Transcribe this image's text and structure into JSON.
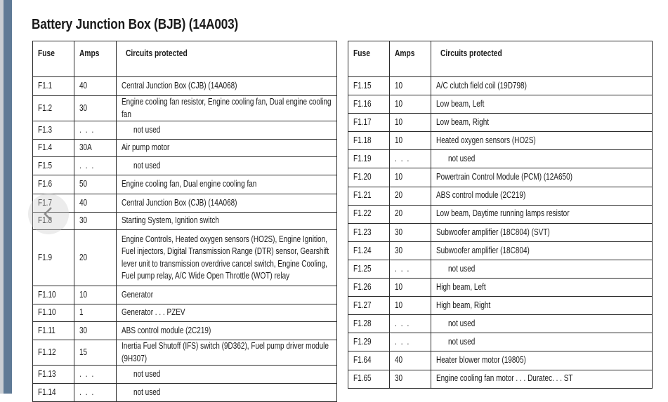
{
  "title": "Battery Junction Box (BJB) (14A003)",
  "columns": {
    "fuse": "Fuse",
    "amps": "Amps",
    "circuits": "Circuits protected"
  },
  "left_table": [
    {
      "fuse": "F1.1",
      "amps": "40",
      "circuits": "Central Junction Box (CJB) (14A068)"
    },
    {
      "fuse": "F1.2",
      "amps": "30",
      "circuits": "Engine cooling fan resistor, Engine cooling fan, Dual engine cooling fan"
    },
    {
      "fuse": "F1.3",
      "amps": ". . .",
      "circuits": "not used"
    },
    {
      "fuse": "F1.4",
      "amps": "30A",
      "circuits": "Air pump motor"
    },
    {
      "fuse": "F1.5",
      "amps": ". . .",
      "circuits": "not used"
    },
    {
      "fuse": "F1.6",
      "amps": "50",
      "circuits": "Engine cooling fan, Dual engine cooling fan"
    },
    {
      "fuse": "F1.7",
      "amps": "40",
      "circuits": "Central Junction Box (CJB) (14A068)"
    },
    {
      "fuse": "F1.8",
      "amps": "30",
      "circuits": "Starting System, Ignition switch"
    },
    {
      "fuse": "F1.9",
      "amps": "20",
      "circuits": "Engine Controls, Heated oxygen sensors (HO2S), Engine Ignition, Fuel injectors, Digital Transmission Range (DTR) sensor, Gearshift lever unit to transmission overdrive cancel switch, Engine Cooling, Fuel pump relay, A/C Wide Open Throttle (WOT) relay"
    },
    {
      "fuse": "F1.10",
      "amps": "10",
      "circuits": "Generator"
    },
    {
      "fuse": "F1.10",
      "amps": "1",
      "circuits": "Generator . . .  PZEV"
    },
    {
      "fuse": "F1.11",
      "amps": "30",
      "circuits": "ABS control module (2C219)"
    },
    {
      "fuse": "F1.12",
      "amps": "15",
      "circuits": "Inertia Fuel Shutoff (IFS) switch (9D362), Fuel pump driver module (9H307)"
    },
    {
      "fuse": "F1.13",
      "amps": ". . .",
      "circuits": "not used"
    },
    {
      "fuse": "F1.14",
      "amps": ". . .",
      "circuits": "not used"
    }
  ],
  "right_table": [
    {
      "fuse": "F1.15",
      "amps": "10",
      "circuits": "A/C clutch field coil (19D798)"
    },
    {
      "fuse": "F1.16",
      "amps": "10",
      "circuits": "Low beam, Left"
    },
    {
      "fuse": "F1.17",
      "amps": "10",
      "circuits": "Low beam, Right"
    },
    {
      "fuse": "F1.18",
      "amps": "10",
      "circuits": "Heated oxygen sensors (HO2S)"
    },
    {
      "fuse": "F1.19",
      "amps": ". . .",
      "circuits": "not used"
    },
    {
      "fuse": "F1.20",
      "amps": "10",
      "circuits": "Powertrain Control Module (PCM) (12A650)"
    },
    {
      "fuse": "F1.21",
      "amps": "20",
      "circuits": "ABS control module (2C219)"
    },
    {
      "fuse": "F1.22",
      "amps": "20",
      "circuits": "Low beam, Daytime running lamps resistor"
    },
    {
      "fuse": "F1.23",
      "amps": "30",
      "circuits": "Subwoofer amplifier (18C804) (SVT)"
    },
    {
      "fuse": "F1.24",
      "amps": "30",
      "circuits": "Subwoofer amplifier (18C804)"
    },
    {
      "fuse": "F1.25",
      "amps": ". . .",
      "circuits": "not used"
    },
    {
      "fuse": "F1.26",
      "amps": "10",
      "circuits": "High beam, Left"
    },
    {
      "fuse": "F1.27",
      "amps": "10",
      "circuits": "High beam, Right"
    },
    {
      "fuse": "F1.28",
      "amps": ". . .",
      "circuits": "not used"
    },
    {
      "fuse": "F1.29",
      "amps": ". . .",
      "circuits": "not used"
    },
    {
      "fuse": "F1.64",
      "amps": "40",
      "circuits": "Heater blower motor (19805)"
    },
    {
      "fuse": "F1.65",
      "amps": "30",
      "circuits": "Engine cooling fan motor . . .  Duratec. . .  ST"
    }
  ],
  "nav": {
    "icon": "chevron-left-icon"
  },
  "colors": {
    "edge_bar": "#5f7a96",
    "border": "#2b2b2b"
  }
}
